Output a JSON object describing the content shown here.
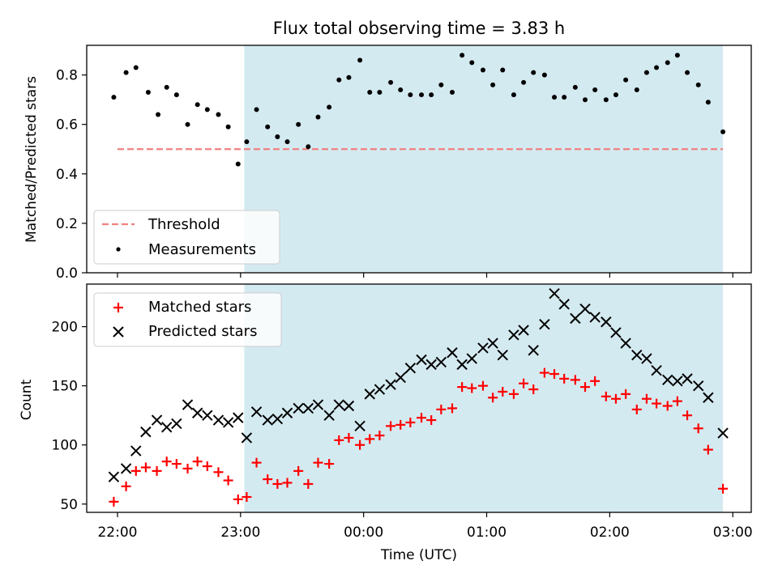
{
  "chart_data": [
    {
      "type": "scatter",
      "title": "Flux total observing time = 3.83 h",
      "xlabel": "",
      "ylabel": "Matched/Predicted stars",
      "ylim": [
        0,
        0.92
      ],
      "yticks": [
        "0.0",
        "0.2",
        "0.4",
        "0.6",
        "0.8"
      ],
      "x_unit": "hours after 22:00 UTC",
      "xlim": [
        -0.25,
        5.15
      ],
      "shaded_span_x": [
        1.03,
        4.92
      ],
      "shaded_color": "#d4eaf1",
      "legend_position": "lower-left",
      "threshold": {
        "name": "Threshold",
        "y": 0.5,
        "x": [
          0.0,
          4.92
        ],
        "color": "#f08080"
      },
      "series": [
        {
          "name": "Measurements",
          "color": "#000000",
          "points": [
            [
              -0.03,
              0.71
            ],
            [
              0.07,
              0.81
            ],
            [
              0.15,
              0.83
            ],
            [
              0.25,
              0.73
            ],
            [
              0.33,
              0.64
            ],
            [
              0.4,
              0.75
            ],
            [
              0.48,
              0.72
            ],
            [
              0.57,
              0.6
            ],
            [
              0.65,
              0.68
            ],
            [
              0.73,
              0.66
            ],
            [
              0.82,
              0.64
            ],
            [
              0.9,
              0.59
            ],
            [
              0.98,
              0.44
            ],
            [
              1.05,
              0.53
            ],
            [
              1.13,
              0.66
            ],
            [
              1.22,
              0.59
            ],
            [
              1.3,
              0.55
            ],
            [
              1.38,
              0.53
            ],
            [
              1.47,
              0.6
            ],
            [
              1.55,
              0.51
            ],
            [
              1.63,
              0.63
            ],
            [
              1.72,
              0.67
            ],
            [
              1.8,
              0.78
            ],
            [
              1.88,
              0.79
            ],
            [
              1.97,
              0.86
            ],
            [
              2.05,
              0.73
            ],
            [
              2.13,
              0.73
            ],
            [
              2.22,
              0.77
            ],
            [
              2.3,
              0.74
            ],
            [
              2.38,
              0.72
            ],
            [
              2.47,
              0.72
            ],
            [
              2.55,
              0.72
            ],
            [
              2.63,
              0.76
            ],
            [
              2.72,
              0.73
            ],
            [
              2.8,
              0.88
            ],
            [
              2.88,
              0.85
            ],
            [
              2.97,
              0.82
            ],
            [
              3.05,
              0.76
            ],
            [
              3.13,
              0.82
            ],
            [
              3.22,
              0.72
            ],
            [
              3.3,
              0.77
            ],
            [
              3.38,
              0.81
            ],
            [
              3.47,
              0.8
            ],
            [
              3.55,
              0.71
            ],
            [
              3.63,
              0.71
            ],
            [
              3.72,
              0.75
            ],
            [
              3.8,
              0.7
            ],
            [
              3.88,
              0.74
            ],
            [
              3.97,
              0.7
            ],
            [
              4.05,
              0.72
            ],
            [
              4.13,
              0.78
            ],
            [
              4.22,
              0.74
            ],
            [
              4.3,
              0.81
            ],
            [
              4.38,
              0.83
            ],
            [
              4.47,
              0.85
            ],
            [
              4.55,
              0.88
            ],
            [
              4.63,
              0.81
            ],
            [
              4.72,
              0.76
            ],
            [
              4.8,
              0.69
            ],
            [
              4.92,
              0.57
            ]
          ]
        }
      ]
    },
    {
      "type": "scatter",
      "title": "",
      "xlabel": "Time (UTC)",
      "ylabel": "Count",
      "ylim": [
        43,
        236
      ],
      "yticks": [
        "50",
        "100",
        "150",
        "200"
      ],
      "xticks": [
        {
          "x": 0,
          "label": "22:00"
        },
        {
          "x": 1,
          "label": "23:00"
        },
        {
          "x": 2,
          "label": "00:00"
        },
        {
          "x": 3,
          "label": "01:00"
        },
        {
          "x": 4,
          "label": "02:00"
        },
        {
          "x": 5,
          "label": "03:00"
        }
      ],
      "x_unit": "hours after 22:00 UTC",
      "xlim": [
        -0.25,
        5.15
      ],
      "shaded_span_x": [
        1.03,
        4.92
      ],
      "shaded_color": "#d4eaf1",
      "legend_position": "upper-left",
      "series": [
        {
          "name": "Matched stars",
          "marker": "plus",
          "color": "#ff0000",
          "points": [
            [
              -0.03,
              52
            ],
            [
              0.07,
              65
            ],
            [
              0.15,
              78
            ],
            [
              0.23,
              81
            ],
            [
              0.32,
              78
            ],
            [
              0.4,
              86
            ],
            [
              0.48,
              84
            ],
            [
              0.57,
              80
            ],
            [
              0.65,
              86
            ],
            [
              0.73,
              82
            ],
            [
              0.82,
              77
            ],
            [
              0.9,
              70
            ],
            [
              0.98,
              54
            ],
            [
              1.05,
              56
            ],
            [
              1.13,
              85
            ],
            [
              1.22,
              71
            ],
            [
              1.3,
              67
            ],
            [
              1.38,
              68
            ],
            [
              1.47,
              78
            ],
            [
              1.55,
              67
            ],
            [
              1.63,
              85
            ],
            [
              1.72,
              84
            ],
            [
              1.8,
              104
            ],
            [
              1.88,
              106
            ],
            [
              1.97,
              100
            ],
            [
              2.05,
              105
            ],
            [
              2.13,
              108
            ],
            [
              2.22,
              116
            ],
            [
              2.3,
              117
            ],
            [
              2.38,
              119
            ],
            [
              2.47,
              123
            ],
            [
              2.55,
              121
            ],
            [
              2.63,
              130
            ],
            [
              2.72,
              131
            ],
            [
              2.8,
              149
            ],
            [
              2.88,
              148
            ],
            [
              2.97,
              150
            ],
            [
              3.05,
              140
            ],
            [
              3.13,
              145
            ],
            [
              3.22,
              143
            ],
            [
              3.3,
              152
            ],
            [
              3.38,
              147
            ],
            [
              3.47,
              161
            ],
            [
              3.55,
              160
            ],
            [
              3.63,
              156
            ],
            [
              3.72,
              155
            ],
            [
              3.8,
              149
            ],
            [
              3.88,
              154
            ],
            [
              3.97,
              141
            ],
            [
              4.05,
              139
            ],
            [
              4.13,
              143
            ],
            [
              4.22,
              130
            ],
            [
              4.3,
              139
            ],
            [
              4.38,
              135
            ],
            [
              4.47,
              133
            ],
            [
              4.55,
              137
            ],
            [
              4.63,
              125
            ],
            [
              4.72,
              114
            ],
            [
              4.8,
              96
            ],
            [
              4.92,
              63
            ]
          ]
        },
        {
          "name": "Predicted stars",
          "marker": "x",
          "color": "#000000",
          "points": [
            [
              -0.03,
              73
            ],
            [
              0.07,
              80
            ],
            [
              0.15,
              95
            ],
            [
              0.23,
              111
            ],
            [
              0.32,
              121
            ],
            [
              0.4,
              115
            ],
            [
              0.48,
              118
            ],
            [
              0.57,
              134
            ],
            [
              0.65,
              127
            ],
            [
              0.73,
              125
            ],
            [
              0.82,
              121
            ],
            [
              0.9,
              119
            ],
            [
              0.98,
              123
            ],
            [
              1.05,
              106
            ],
            [
              1.13,
              128
            ],
            [
              1.22,
              121
            ],
            [
              1.3,
              122
            ],
            [
              1.38,
              127
            ],
            [
              1.47,
              131
            ],
            [
              1.55,
              131
            ],
            [
              1.63,
              134
            ],
            [
              1.72,
              125
            ],
            [
              1.8,
              134
            ],
            [
              1.88,
              133
            ],
            [
              1.97,
              116
            ],
            [
              2.05,
              143
            ],
            [
              2.13,
              147
            ],
            [
              2.22,
              151
            ],
            [
              2.3,
              157
            ],
            [
              2.38,
              165
            ],
            [
              2.47,
              172
            ],
            [
              2.55,
              168
            ],
            [
              2.63,
              170
            ],
            [
              2.72,
              178
            ],
            [
              2.8,
              168
            ],
            [
              2.88,
              173
            ],
            [
              2.97,
              182
            ],
            [
              3.05,
              186
            ],
            [
              3.13,
              176
            ],
            [
              3.22,
              193
            ],
            [
              3.3,
              197
            ],
            [
              3.38,
              180
            ],
            [
              3.47,
              202
            ],
            [
              3.55,
              228
            ],
            [
              3.63,
              219
            ],
            [
              3.72,
              207
            ],
            [
              3.8,
              215
            ],
            [
              3.88,
              208
            ],
            [
              3.97,
              204
            ],
            [
              4.05,
              195
            ],
            [
              4.13,
              186
            ],
            [
              4.22,
              176
            ],
            [
              4.3,
              173
            ],
            [
              4.38,
              163
            ],
            [
              4.47,
              155
            ],
            [
              4.55,
              154
            ],
            [
              4.63,
              156
            ],
            [
              4.72,
              150
            ],
            [
              4.8,
              140
            ],
            [
              4.92,
              110
            ]
          ]
        }
      ]
    }
  ]
}
